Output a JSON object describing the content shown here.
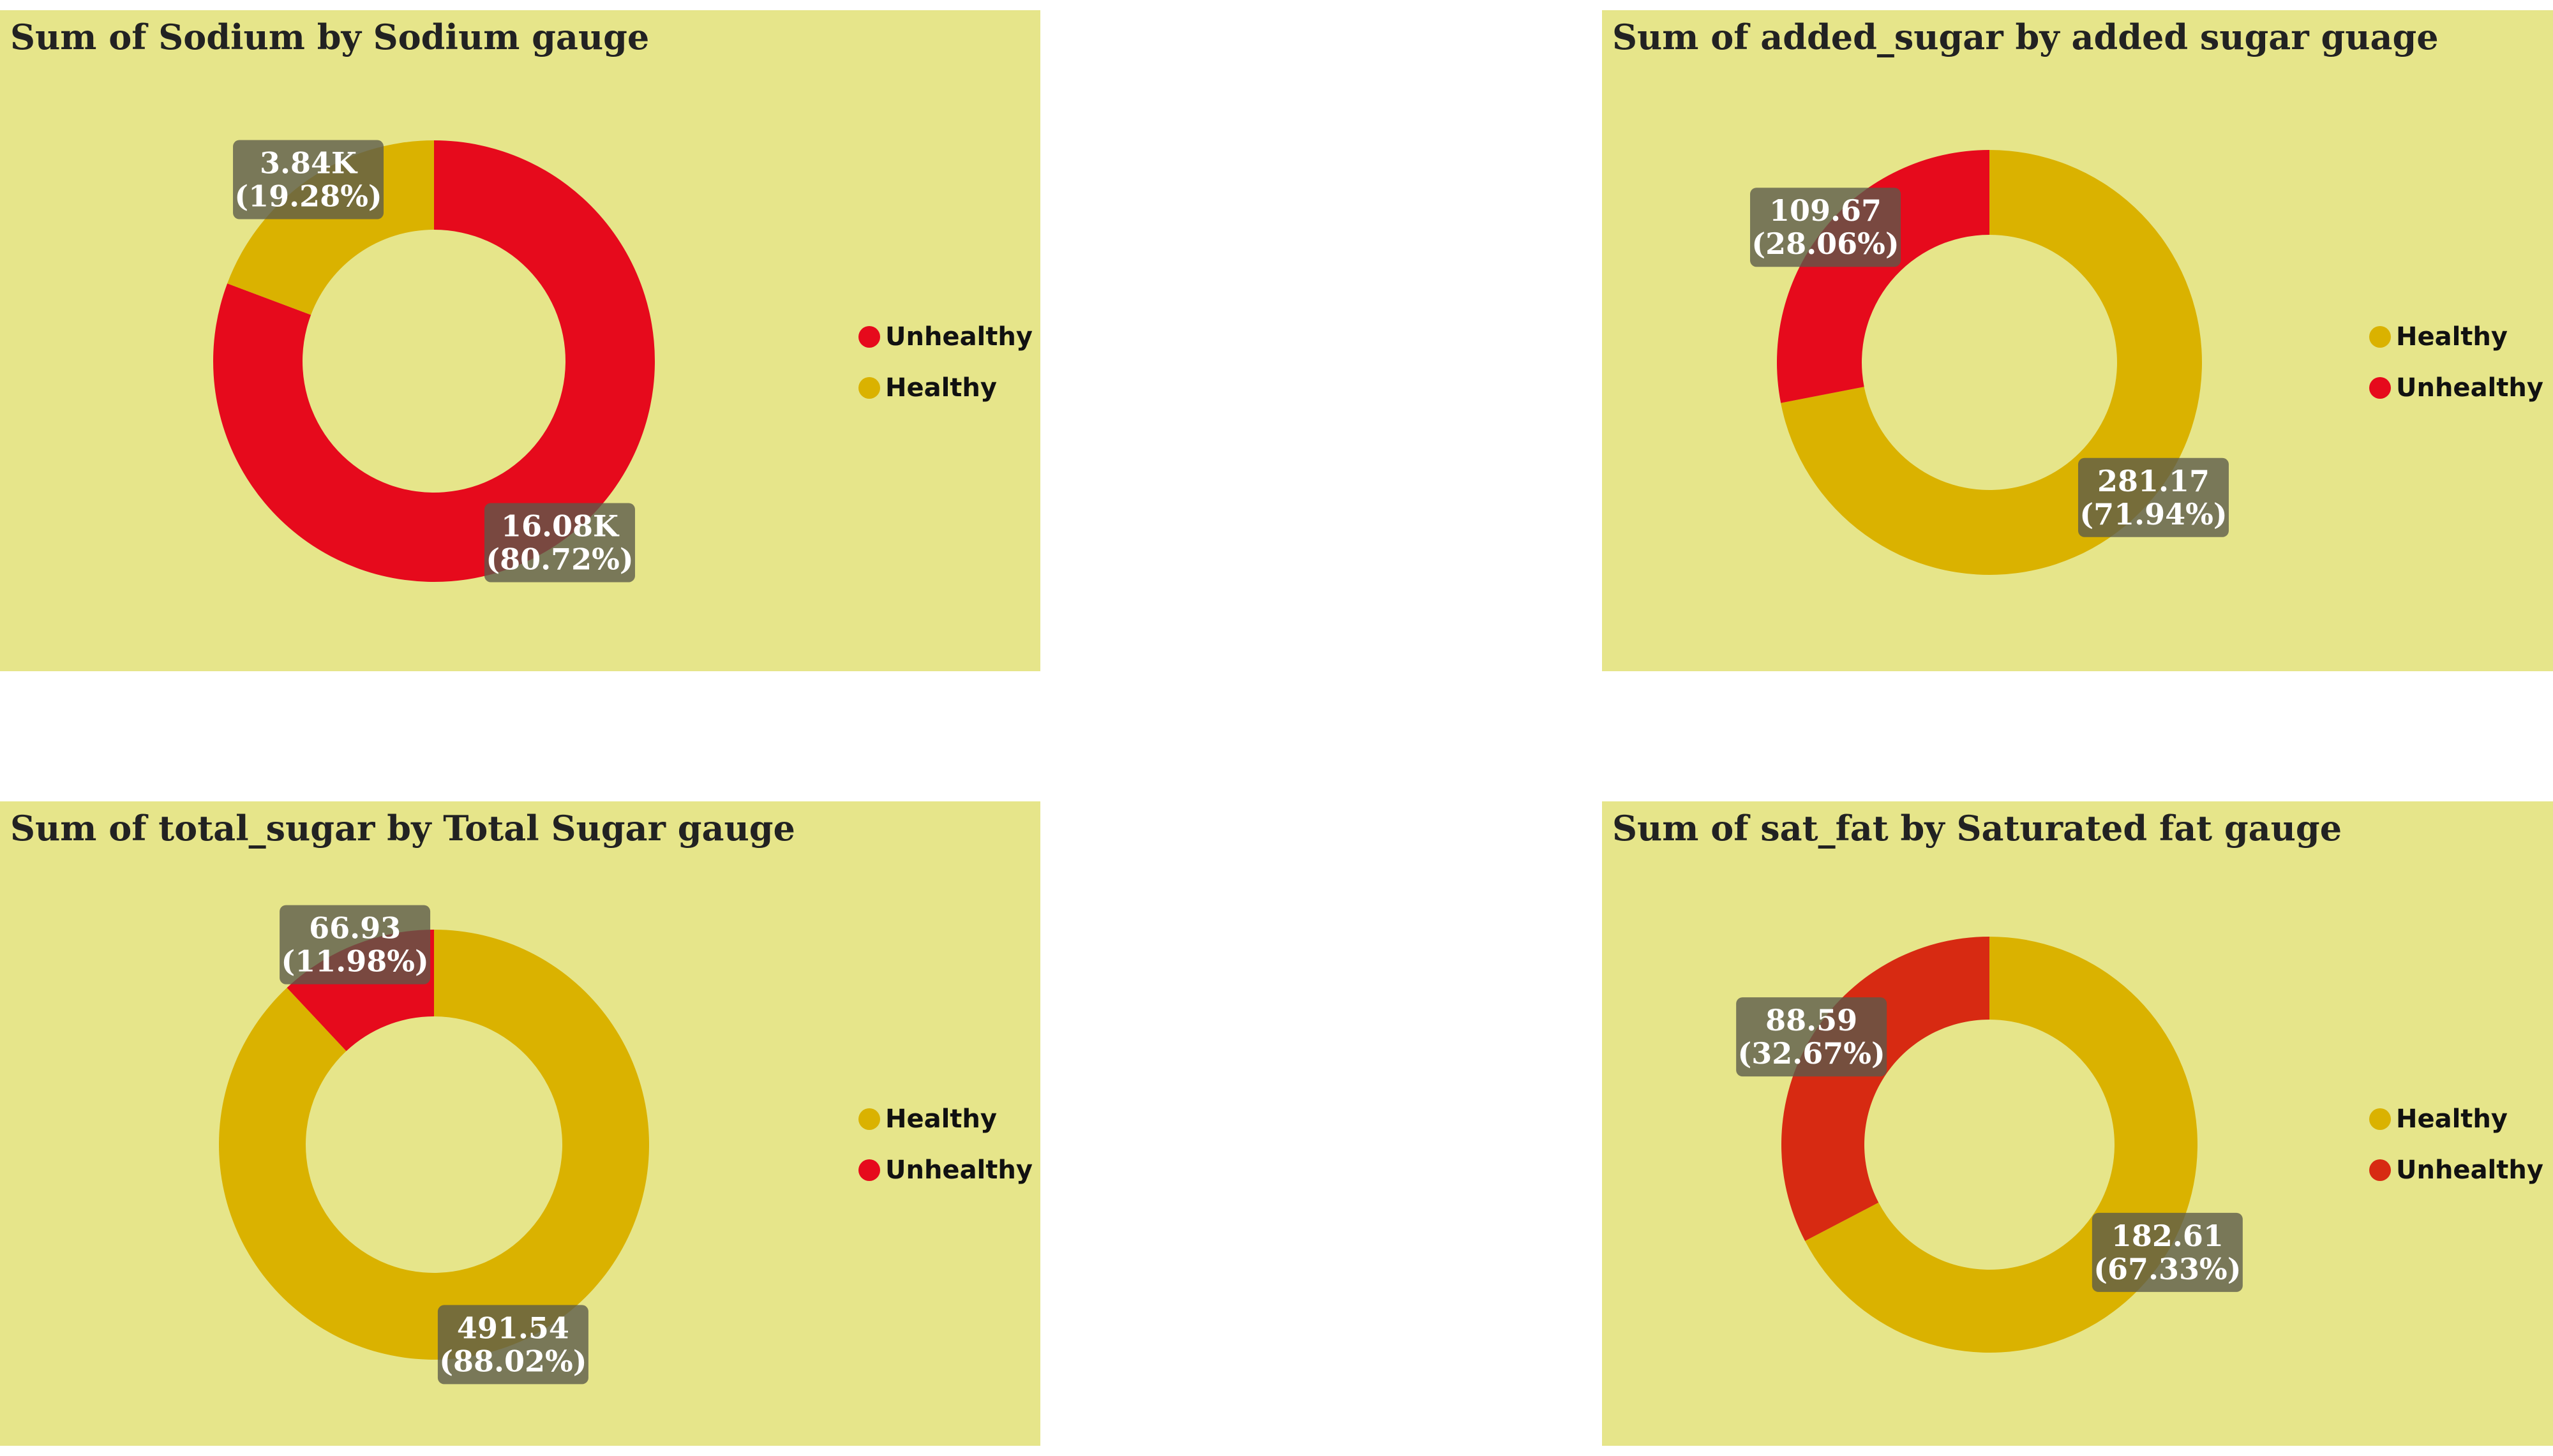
{
  "colors": {
    "panel_bg": "#e6e58a",
    "unhealthy": "#e60a1c",
    "healthy": "#dab200",
    "unhealthy_satfat": "#d72a12",
    "label_box": "#5a5a4a"
  },
  "chart_data": [
    {
      "id": "sodium",
      "type": "pie",
      "title": "Sum of Sodium by Sodium gauge",
      "categories": [
        "Unhealthy",
        "Healthy"
      ],
      "values": [
        16080,
        3840
      ],
      "value_labels": [
        "16.08K",
        "3.84K"
      ],
      "percent_labels": [
        "(80.72%)",
        "(19.28%)"
      ],
      "legend": [
        "Unhealthy",
        "Healthy"
      ],
      "legend_position": "right",
      "colors": [
        "#e60a1c",
        "#dab200"
      ]
    },
    {
      "id": "added_sugar",
      "type": "pie",
      "title": "Sum of added_sugar by added sugar guage",
      "categories": [
        "Healthy",
        "Unhealthy"
      ],
      "values": [
        281.17,
        109.67
      ],
      "value_labels": [
        "281.17",
        "109.67"
      ],
      "percent_labels": [
        "(71.94%)",
        "(28.06%)"
      ],
      "legend": [
        "Healthy",
        "Unhealthy"
      ],
      "legend_position": "right",
      "colors": [
        "#dab200",
        "#e60a1c"
      ]
    },
    {
      "id": "total_sugar",
      "type": "pie",
      "title": "Sum of total_sugar by Total Sugar gauge",
      "categories": [
        "Healthy",
        "Unhealthy"
      ],
      "values": [
        491.54,
        66.93
      ],
      "value_labels": [
        "491.54",
        "66.93"
      ],
      "percent_labels": [
        "(88.02%)",
        "(11.98%)"
      ],
      "legend": [
        "Healthy",
        "Unhealthy"
      ],
      "legend_position": "right",
      "colors": [
        "#dab200",
        "#e60a1c"
      ]
    },
    {
      "id": "sat_fat",
      "type": "pie",
      "title": "Sum of sat_fat by Saturated fat gauge",
      "categories": [
        "Healthy",
        "Unhealthy"
      ],
      "values": [
        182.61,
        88.59
      ],
      "value_labels": [
        "182.61",
        "88.59"
      ],
      "percent_labels": [
        "(67.33%)",
        "(32.67%)"
      ],
      "legend": [
        "Healthy",
        "Unhealthy"
      ],
      "legend_position": "right",
      "colors": [
        "#dab200",
        "#d72a12"
      ]
    }
  ]
}
